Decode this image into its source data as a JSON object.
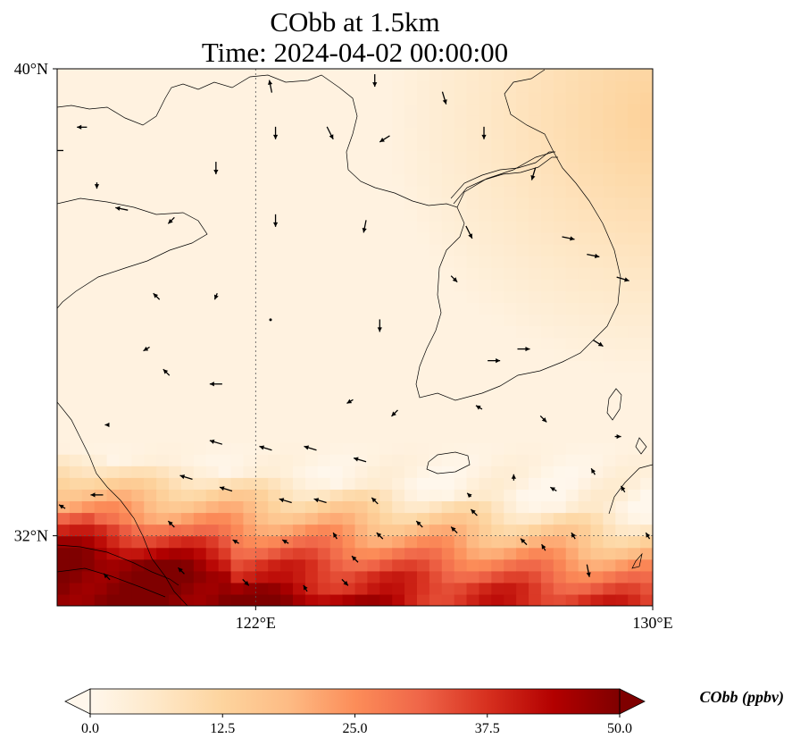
{
  "chart_data": {
    "type": "heatmap",
    "title": "CObb at 1.5km",
    "subtitle": "Time: 2024-04-02 00:00:00",
    "variable": "CObb",
    "level": "1.5km",
    "time": "2024-04-02 00:00:00",
    "xlim": [
      118,
      130
    ],
    "ylim": [
      30.8,
      40
    ],
    "x_ticks": [
      {
        "value": 122,
        "label": "122°E"
      },
      {
        "value": 130,
        "label": "130°E"
      }
    ],
    "y_ticks": [
      {
        "value": 40,
        "label": "40°N"
      },
      {
        "value": 32,
        "label": "32°N"
      }
    ],
    "gridlines": [
      {
        "axis": "x",
        "value": 122
      },
      {
        "axis": "y",
        "value": 32
      }
    ],
    "colorbar": {
      "label": "CObb (ppbv)",
      "min": 0.0,
      "max": 50.0,
      "ticks": [
        "0.0",
        "12.5",
        "25.0",
        "37.5",
        "50.0"
      ],
      "extend": "both",
      "colormap": "OrRd",
      "colors": [
        "#fff7ec",
        "#fee8c8",
        "#fdd49e",
        "#fdbb84",
        "#fc8d59",
        "#ef6548",
        "#d7301f",
        "#b30000",
        "#7f0000"
      ]
    },
    "field_description": {
      "background_value": 2,
      "high_band": "southern edge near 31–32.5°N, values 40–50 ppbv over Yangtze estuary and East China Sea",
      "secondary_band": "southern edge near 32.2–33.5°N at 119–130°E, values 18–35 ppbv",
      "northeast_plume": "northeast corner near 37–40°N, 127–130°E, values 8–15 ppbv"
    },
    "wind_vectors": [
      {
        "lon": 122.3,
        "lat": 39.7,
        "u": -0.2,
        "v": 1.0
      },
      {
        "lon": 124.4,
        "lat": 39.8,
        "u": 0.0,
        "v": -1.0
      },
      {
        "lon": 125.8,
        "lat": 39.5,
        "u": 0.3,
        "v": -1.0
      },
      {
        "lon": 118.5,
        "lat": 39.0,
        "u": -0.8,
        "v": 0.0
      },
      {
        "lon": 118.0,
        "lat": 38.6,
        "u": -1.0,
        "v": 0.0
      },
      {
        "lon": 122.4,
        "lat": 38.9,
        "u": 0.0,
        "v": -1.0
      },
      {
        "lon": 123.5,
        "lat": 38.9,
        "u": 0.5,
        "v": -1.0
      },
      {
        "lon": 124.6,
        "lat": 38.8,
        "u": -0.8,
        "v": -0.5
      },
      {
        "lon": 126.6,
        "lat": 38.9,
        "u": 0.0,
        "v": -1.0
      },
      {
        "lon": 121.2,
        "lat": 38.3,
        "u": 0.0,
        "v": -1.0
      },
      {
        "lon": 127.6,
        "lat": 38.2,
        "u": -0.3,
        "v": -1.0
      },
      {
        "lon": 118.8,
        "lat": 38.0,
        "u": 0.0,
        "v": -0.5
      },
      {
        "lon": 119.3,
        "lat": 37.6,
        "u": -1.0,
        "v": 0.2
      },
      {
        "lon": 120.3,
        "lat": 37.4,
        "u": -0.5,
        "v": -0.5
      },
      {
        "lon": 122.4,
        "lat": 37.4,
        "u": 0.0,
        "v": -1.0
      },
      {
        "lon": 124.2,
        "lat": 37.3,
        "u": -0.2,
        "v": -1.0
      },
      {
        "lon": 126.3,
        "lat": 37.2,
        "u": 0.5,
        "v": -1.0
      },
      {
        "lon": 128.3,
        "lat": 37.1,
        "u": 1.0,
        "v": -0.2
      },
      {
        "lon": 128.8,
        "lat": 36.8,
        "u": 1.0,
        "v": -0.2
      },
      {
        "lon": 129.4,
        "lat": 36.4,
        "u": 1.0,
        "v": -0.3
      },
      {
        "lon": 126.0,
        "lat": 36.4,
        "u": 0.5,
        "v": -0.5
      },
      {
        "lon": 120.0,
        "lat": 36.1,
        "u": -0.5,
        "v": 0.5
      },
      {
        "lon": 121.2,
        "lat": 36.1,
        "u": -0.2,
        "v": -0.5
      },
      {
        "lon": 122.3,
        "lat": 35.7,
        "u": 0.0,
        "v": 0.0
      },
      {
        "lon": 124.5,
        "lat": 35.6,
        "u": 0.0,
        "v": -1.0
      },
      {
        "lon": 119.8,
        "lat": 35.2,
        "u": -0.5,
        "v": -0.3
      },
      {
        "lon": 126.8,
        "lat": 35.0,
        "u": 1.0,
        "v": 0.0
      },
      {
        "lon": 127.4,
        "lat": 35.2,
        "u": 1.0,
        "v": 0.0
      },
      {
        "lon": 128.9,
        "lat": 35.3,
        "u": 0.8,
        "v": -0.5
      },
      {
        "lon": 120.2,
        "lat": 34.8,
        "u": -0.5,
        "v": 0.5
      },
      {
        "lon": 121.2,
        "lat": 34.6,
        "u": -1.0,
        "v": 0.0
      },
      {
        "lon": 123.9,
        "lat": 34.3,
        "u": -0.5,
        "v": -0.3
      },
      {
        "lon": 124.8,
        "lat": 34.1,
        "u": -0.5,
        "v": -0.5
      },
      {
        "lon": 126.5,
        "lat": 34.2,
        "u": -0.5,
        "v": 0.3
      },
      {
        "lon": 127.8,
        "lat": 34.0,
        "u": 0.5,
        "v": -0.5
      },
      {
        "lon": 129.3,
        "lat": 33.7,
        "u": 0.5,
        "v": 0.0
      },
      {
        "lon": 119.0,
        "lat": 33.9,
        "u": -0.3,
        "v": 0.0
      },
      {
        "lon": 121.2,
        "lat": 33.6,
        "u": -1.0,
        "v": 0.3
      },
      {
        "lon": 122.2,
        "lat": 33.5,
        "u": -1.0,
        "v": 0.3
      },
      {
        "lon": 123.1,
        "lat": 33.5,
        "u": -1.0,
        "v": 0.3
      },
      {
        "lon": 124.1,
        "lat": 33.3,
        "u": -1.0,
        "v": 0.3
      },
      {
        "lon": 120.6,
        "lat": 33.0,
        "u": -1.0,
        "v": 0.3
      },
      {
        "lon": 121.4,
        "lat": 32.8,
        "u": -1.0,
        "v": 0.3
      },
      {
        "lon": 122.6,
        "lat": 32.6,
        "u": -1.0,
        "v": 0.3
      },
      {
        "lon": 123.3,
        "lat": 32.6,
        "u": -1.0,
        "v": 0.3
      },
      {
        "lon": 124.4,
        "lat": 32.6,
        "u": -0.5,
        "v": 0.5
      },
      {
        "lon": 126.3,
        "lat": 32.7,
        "u": -0.3,
        "v": 0.3
      },
      {
        "lon": 127.2,
        "lat": 33.0,
        "u": 0.0,
        "v": 0.5
      },
      {
        "lon": 128.0,
        "lat": 32.8,
        "u": -0.5,
        "v": 0.3
      },
      {
        "lon": 128.8,
        "lat": 33.1,
        "u": -0.3,
        "v": 0.5
      },
      {
        "lon": 129.4,
        "lat": 32.8,
        "u": -0.3,
        "v": 0.5
      },
      {
        "lon": 118.8,
        "lat": 32.7,
        "u": -1.0,
        "v": 0.0
      },
      {
        "lon": 118.1,
        "lat": 32.5,
        "u": -0.5,
        "v": 0.3
      },
      {
        "lon": 120.3,
        "lat": 32.2,
        "u": -0.5,
        "v": 0.5
      },
      {
        "lon": 121.6,
        "lat": 31.9,
        "u": -0.5,
        "v": 0.3
      },
      {
        "lon": 122.6,
        "lat": 31.9,
        "u": -0.5,
        "v": 0.3
      },
      {
        "lon": 123.6,
        "lat": 32.0,
        "u": -0.3,
        "v": 0.5
      },
      {
        "lon": 124.0,
        "lat": 31.6,
        "u": -0.5,
        "v": 0.5
      },
      {
        "lon": 124.5,
        "lat": 32.0,
        "u": -0.5,
        "v": 0.5
      },
      {
        "lon": 125.3,
        "lat": 32.2,
        "u": -0.5,
        "v": 0.5
      },
      {
        "lon": 126.0,
        "lat": 32.1,
        "u": -0.5,
        "v": 0.5
      },
      {
        "lon": 126.4,
        "lat": 32.4,
        "u": -0.5,
        "v": 0.5
      },
      {
        "lon": 127.4,
        "lat": 31.9,
        "u": -0.5,
        "v": 0.5
      },
      {
        "lon": 127.8,
        "lat": 31.8,
        "u": -0.3,
        "v": 0.5
      },
      {
        "lon": 128.4,
        "lat": 32.0,
        "u": -0.3,
        "v": 0.5
      },
      {
        "lon": 129.9,
        "lat": 32.0,
        "u": -0.3,
        "v": 0.5
      },
      {
        "lon": 128.7,
        "lat": 31.4,
        "u": 0.2,
        "v": -1.0
      },
      {
        "lon": 120.5,
        "lat": 31.4,
        "u": -0.5,
        "v": 0.5
      },
      {
        "lon": 121.8,
        "lat": 31.2,
        "u": 0.5,
        "v": -0.5
      },
      {
        "lon": 123.0,
        "lat": 31.1,
        "u": -0.3,
        "v": 0.5
      },
      {
        "lon": 123.8,
        "lat": 31.2,
        "u": 0.5,
        "v": -0.5
      },
      {
        "lon": 119.0,
        "lat": 31.3,
        "u": -0.5,
        "v": 0.5
      }
    ]
  }
}
